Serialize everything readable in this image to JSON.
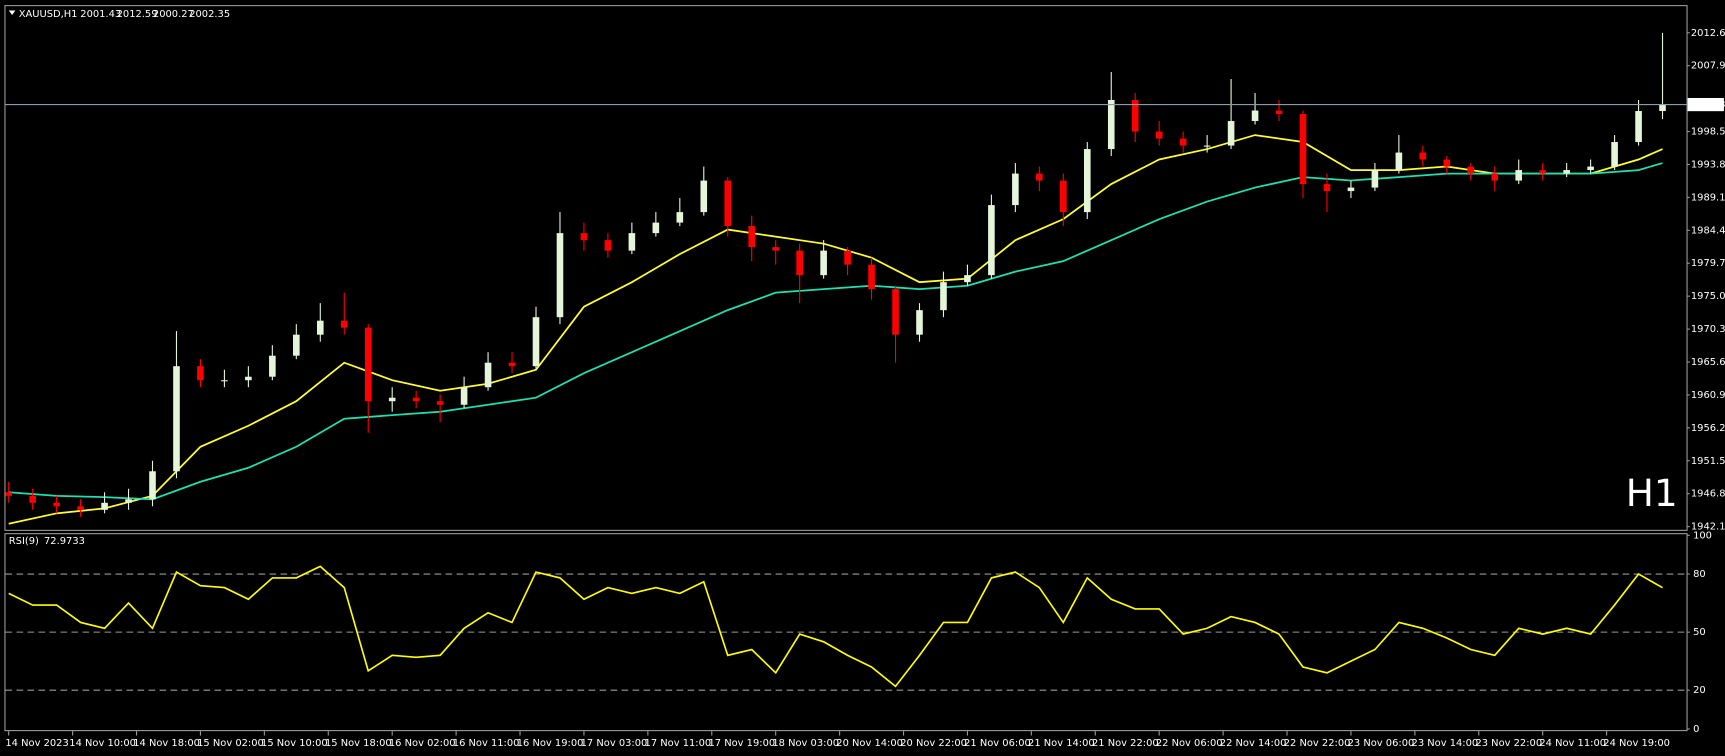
{
  "chart_data": [
    {
      "type": "candlestick",
      "title": "XAUUSD,H1",
      "watermark": "H1",
      "watermark_color": "#e00000",
      "up_color": "#e4f5da",
      "down_color": "#ff0000",
      "price_line_color": "#8a9aa8",
      "x": [
        0,
        3,
        6,
        9,
        12,
        15,
        18,
        21,
        24,
        27,
        30,
        33,
        36,
        39,
        42,
        45,
        48,
        51,
        54,
        57,
        60,
        63,
        66,
        69,
        72,
        75,
        78,
        81,
        84,
        87,
        90,
        93,
        96,
        99,
        102,
        105,
        108,
        111,
        114,
        117,
        120,
        123,
        126,
        129,
        132,
        135,
        138,
        141,
        144,
        147,
        150,
        153,
        156,
        159,
        162,
        165,
        168,
        171,
        174,
        177,
        180,
        183,
        186,
        189,
        192,
        195,
        198,
        201,
        204,
        207
      ],
      "open": [
        1947,
        1946.5,
        1945.5,
        1945,
        1944.5,
        1945.5,
        1946,
        1950,
        1965,
        1963,
        1963,
        1963.5,
        1966.5,
        1969.5,
        1971.5,
        1970.5,
        1960,
        1960.5,
        1960,
        1959.5,
        1962,
        1965.5,
        1965,
        1972,
        1984,
        1983,
        1981.5,
        1984,
        1985.5,
        1987,
        1991.5,
        1985,
        1982,
        1981.5,
        1978,
        1981.5,
        1979.5,
        1976,
        1969.5,
        1973,
        1977,
        1978,
        1988,
        1992.5,
        1991.5,
        1987,
        1996,
        2003,
        1998.5,
        1997.5,
        1996.5,
        1996.5,
        2000,
        2001.5,
        2001,
        1991,
        1990,
        1990.5,
        1993,
        1995.5,
        1994.5,
        1993.5,
        1992.5,
        1991.5,
        1993,
        1992.5,
        1993,
        1993.5,
        1997,
        2001.43
      ],
      "high": [
        1948.5,
        1947.5,
        1946.5,
        1946,
        1947,
        1947.5,
        1951.5,
        1970,
        1966,
        1964.5,
        1965,
        1968,
        1971,
        1974,
        1975.5,
        1971,
        1962,
        1961.5,
        1961,
        1963.5,
        1967,
        1967,
        1973.5,
        1987,
        1985.5,
        1984,
        1985.5,
        1987,
        1989,
        1993.5,
        1992,
        1986.5,
        1983,
        1982.5,
        1983,
        1982,
        1980.5,
        1976.5,
        1974,
        1978.5,
        1979.5,
        1989.5,
        1994,
        1993.5,
        1992.5,
        1997,
        2007,
        2004,
        2000,
        1998.5,
        1998,
        2006,
        2004,
        2003,
        2001.5,
        1992.5,
        1991.5,
        1994,
        1998,
        1996.5,
        1995,
        1994,
        1993.5,
        1994.5,
        1994,
        1994,
        1994.5,
        1998,
        2003,
        2012.59
      ],
      "low": [
        1945.5,
        1944.5,
        1944,
        1943.5,
        1944,
        1944.5,
        1945,
        1949,
        1962,
        1962,
        1962,
        1963,
        1966,
        1968.5,
        1969.5,
        1955.5,
        1958.5,
        1959,
        1957,
        1959,
        1961.5,
        1964,
        1964.5,
        1971,
        1981.5,
        1980.5,
        1981,
        1983.5,
        1985,
        1986.5,
        1983.5,
        1980,
        1979.5,
        1974,
        1977.5,
        1978,
        1974.5,
        1965.5,
        1968.5,
        1972,
        1976.5,
        1977.5,
        1987,
        1990,
        1985,
        1986,
        1995,
        1997,
        1996.5,
        1995.5,
        1995.5,
        1996,
        1999.5,
        2000,
        1989,
        1987,
        1989,
        1990,
        1992.5,
        1993.5,
        1992.5,
        1991.5,
        1990,
        1991,
        1991.5,
        1992,
        1992.5,
        1993,
        1996.5,
        2000.27
      ],
      "close": [
        1946.5,
        1945.5,
        1945,
        1944.5,
        1945.5,
        1946,
        1950,
        1965,
        1963,
        1963,
        1963.5,
        1966.5,
        1969.5,
        1971.5,
        1970.5,
        1960,
        1960.5,
        1960,
        1959.5,
        1962,
        1965.5,
        1965,
        1972,
        1984,
        1983,
        1981.5,
        1984,
        1985.5,
        1987,
        1991.5,
        1985,
        1982,
        1981.5,
        1978,
        1981.5,
        1979.5,
        1976,
        1969.5,
        1973,
        1977,
        1978,
        1988,
        1992.5,
        1991.5,
        1987,
        1996,
        2003,
        1998.5,
        1997.5,
        1996.5,
        1996.5,
        2000,
        2001.5,
        2001,
        1991,
        1990,
        1990.5,
        1993,
        1995.5,
        1994.5,
        1993.5,
        1992.5,
        1991.5,
        1993,
        1992.5,
        1993,
        1993.5,
        1997,
        2001.43,
        2002.35
      ],
      "overlays": [
        {
          "color": "#ffff33",
          "x": [
            0,
            6,
            12,
            18,
            24,
            30,
            36,
            42,
            48,
            54,
            60,
            66,
            72,
            78,
            84,
            90,
            96,
            102,
            108,
            114,
            120,
            126,
            132,
            138,
            144,
            150,
            156,
            162,
            168,
            174,
            180,
            186,
            192,
            198,
            204,
            207
          ],
          "values": [
            1942.5,
            1944,
            1944.7,
            1946.5,
            1953.5,
            1956.5,
            1960,
            1965.5,
            1963,
            1961.5,
            1962.5,
            1964.5,
            1973.5,
            1977,
            1981,
            1984.5,
            1983.5,
            1982.5,
            1980.5,
            1977,
            1977.5,
            1983,
            1986,
            1991,
            1994.5,
            1996,
            1998,
            1997,
            1993,
            1993,
            1993.5,
            1992.5,
            1992.5,
            1992.5,
            1994.5,
            1996
          ]
        },
        {
          "color": "#20e0b0",
          "x": [
            0,
            6,
            12,
            18,
            24,
            30,
            36,
            42,
            48,
            54,
            60,
            66,
            72,
            78,
            84,
            90,
            96,
            102,
            108,
            114,
            120,
            126,
            132,
            138,
            144,
            150,
            156,
            162,
            168,
            174,
            180,
            186,
            192,
            198,
            204,
            207
          ],
          "values": [
            1947,
            1946.5,
            1946.3,
            1946,
            1948.5,
            1950.5,
            1953.5,
            1957.5,
            1958,
            1958.5,
            1959.5,
            1960.5,
            1964,
            1967,
            1970,
            1973,
            1975.5,
            1976,
            1976.5,
            1976,
            1976.5,
            1978.5,
            1980,
            1983,
            1986,
            1988.5,
            1990.5,
            1992,
            1991.5,
            1992,
            1992.5,
            1992.5,
            1992.5,
            1992.5,
            1993,
            1994
          ]
        }
      ],
      "xlim": [
        -0.4,
        210
      ],
      "xticks": [
        {
          "value": 0,
          "label": "14 Nov 2023"
        },
        {
          "value": 8,
          "label": "14 Nov 10:00"
        },
        {
          "value": 16,
          "label": "14 Nov 18:00"
        },
        {
          "value": 24,
          "label": "15 Nov 02:00"
        },
        {
          "value": 32,
          "label": "15 Nov 10:00"
        },
        {
          "value": 40,
          "label": "15 Nov 18:00"
        },
        {
          "value": 48,
          "label": "16 Nov 02:00"
        },
        {
          "value": 56,
          "label": "16 Nov 11:00"
        },
        {
          "value": 64,
          "label": "16 Nov 19:00"
        },
        {
          "value": 72,
          "label": "17 Nov 03:00"
        },
        {
          "value": 80,
          "label": "17 Nov 11:00"
        },
        {
          "value": 88,
          "label": "17 Nov 19:00"
        },
        {
          "value": 96,
          "label": "18 Nov 03:00"
        },
        {
          "value": 104,
          "label": "20 Nov 14:00"
        },
        {
          "value": 112,
          "label": "20 Nov 22:00"
        },
        {
          "value": 120,
          "label": "21 Nov 06:00"
        },
        {
          "value": 128,
          "label": "21 Nov 14:00"
        },
        {
          "value": 136,
          "label": "21 Nov 22:00"
        },
        {
          "value": 144,
          "label": "22 Nov 06:00"
        },
        {
          "value": 152,
          "label": "22 Nov 14:00"
        },
        {
          "value": 160,
          "label": "22 Nov 22:00"
        },
        {
          "value": 168,
          "label": "23 Nov 06:00"
        },
        {
          "value": 176,
          "label": "23 Nov 14:00"
        },
        {
          "value": 184,
          "label": "23 Nov 22:00"
        },
        {
          "value": 192,
          "label": "24 Nov 11:00"
        },
        {
          "value": 200,
          "label": "24 Nov 19:00"
        }
      ],
      "ylim": [
        1941.8,
        2016.4
      ],
      "yticks": [
        {
          "value": 1942.1,
          "label": "1942.10"
        },
        {
          "value": 1946.8,
          "label": "1946.80"
        },
        {
          "value": 1951.5,
          "label": "1951.50"
        },
        {
          "value": 1956.2,
          "label": "1956.20"
        },
        {
          "value": 1960.9,
          "label": "1960.90"
        },
        {
          "value": 1965.6,
          "label": "1965.60"
        },
        {
          "value": 1970.3,
          "label": "1970.30"
        },
        {
          "value": 1975,
          "label": "1975.00"
        },
        {
          "value": 1979.7,
          "label": "1979.70"
        },
        {
          "value": 1984.4,
          "label": "1984.40"
        },
        {
          "value": 1989.1,
          "label": "1989.10"
        },
        {
          "value": 1993.8,
          "label": "1993.80"
        },
        {
          "value": 1998.5,
          "label": "1998.50"
        },
        {
          "value": 2007.9,
          "label": "2007.90"
        },
        {
          "value": 2012.6,
          "label": "2012.60"
        }
      ]
    },
    {
      "type": "line",
      "title": "RSI(9)",
      "color": "#ffff00",
      "level_color": "#9a9a9a",
      "values": [
        70,
        64,
        64,
        55,
        52,
        65,
        52,
        81,
        74,
        73,
        67,
        78,
        78,
        84,
        73,
        30,
        38,
        37,
        38,
        52,
        60,
        55,
        81,
        78,
        67,
        73,
        70,
        73,
        70,
        76,
        38,
        41,
        29,
        49,
        45,
        38,
        32,
        22,
        38,
        55,
        55,
        78,
        81,
        73,
        55,
        78,
        67,
        62,
        62,
        49,
        52,
        58,
        55,
        49,
        32,
        29,
        35,
        41,
        55,
        52,
        47,
        41,
        38,
        52,
        49,
        52,
        49,
        64,
        80,
        72.9733
      ],
      "ylim": [
        0,
        100
      ],
      "yticks": [
        0,
        20,
        50,
        80,
        100
      ]
    }
  ]
}
